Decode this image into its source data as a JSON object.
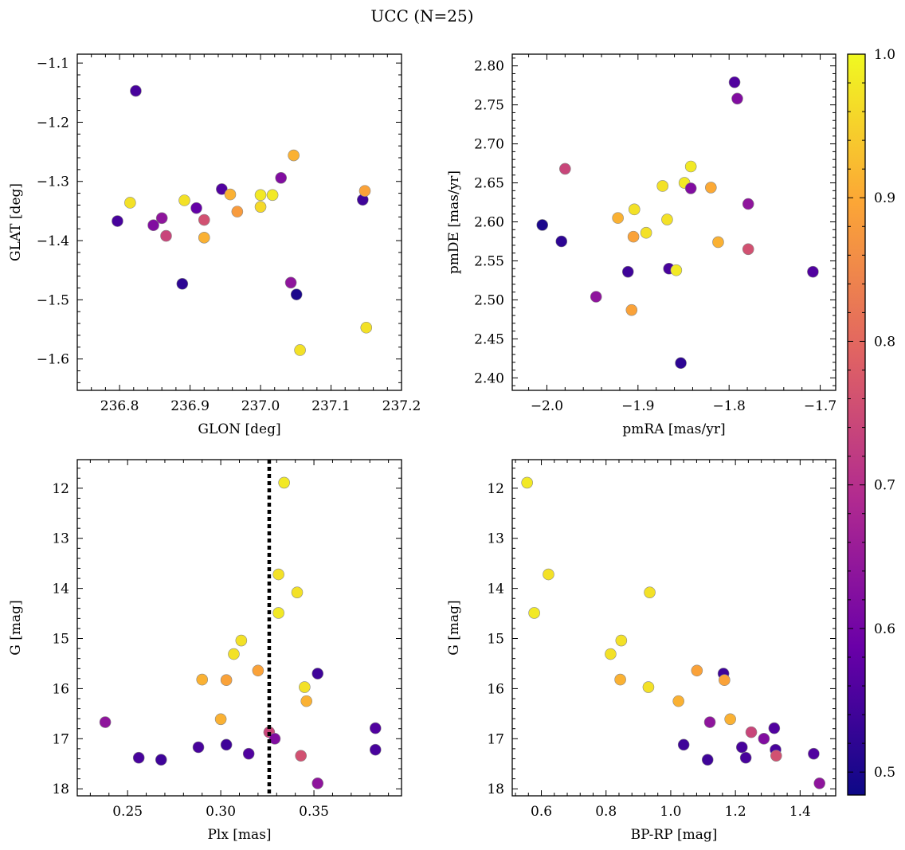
{
  "chart_data": {
    "title": "UCC (N=25)",
    "colorbar": {
      "range": [
        0.484,
        1.0
      ],
      "ticks": [
        0.5,
        0.6,
        0.7,
        0.8,
        0.9,
        1.0
      ],
      "tick_labels": [
        "0.5",
        "0.6",
        "0.7",
        "0.8",
        "0.9",
        "1.0"
      ],
      "colormap": [
        "#0d0887",
        "#6a00a8",
        "#b12a90",
        "#e16462",
        "#fca636",
        "#f0f921"
      ]
    },
    "panels": [
      {
        "type": "scatter",
        "name": "glon-glat",
        "xlabel": "GLON [deg]",
        "ylabel": "GLAT [deg]",
        "xlim": [
          236.74,
          237.2
        ],
        "ylim": [
          -1.653,
          -1.085
        ],
        "y_inverted": false,
        "xticks": [
          236.8,
          236.9,
          237.0,
          237.1,
          237.2
        ],
        "xtick_labels": [
          "236.8",
          "236.9",
          "237.0",
          "237.1",
          "237.2"
        ],
        "yticks": [
          -1.1,
          -1.2,
          -1.3,
          -1.4,
          -1.5,
          -1.6
        ],
        "ytick_labels": [
          "−1.1",
          "−1.2",
          "−1.3",
          "−1.4",
          "−1.5",
          "−1.6"
        ],
        "points": [
          {
            "x": 236.823,
            "y": -1.147,
            "c": 0.55
          },
          {
            "x": 236.797,
            "y": -1.367,
            "c": 0.55
          },
          {
            "x": 236.815,
            "y": -1.336,
            "c": 0.97
          },
          {
            "x": 236.848,
            "y": -1.374,
            "c": 0.62
          },
          {
            "x": 236.86,
            "y": -1.362,
            "c": 0.64
          },
          {
            "x": 236.866,
            "y": -1.392,
            "c": 0.74
          },
          {
            "x": 236.889,
            "y": -1.473,
            "c": 0.52
          },
          {
            "x": 236.892,
            "y": -1.332,
            "c": 0.97
          },
          {
            "x": 236.909,
            "y": -1.345,
            "c": 0.58
          },
          {
            "x": 236.92,
            "y": -1.365,
            "c": 0.76
          },
          {
            "x": 236.92,
            "y": -1.395,
            "c": 0.91
          },
          {
            "x": 236.945,
            "y": -1.313,
            "c": 0.56
          },
          {
            "x": 236.957,
            "y": -1.322,
            "c": 0.91
          },
          {
            "x": 236.967,
            "y": -1.351,
            "c": 0.88
          },
          {
            "x": 237.0,
            "y": -1.343,
            "c": 0.96
          },
          {
            "x": 237.0,
            "y": -1.323,
            "c": 0.98
          },
          {
            "x": 237.017,
            "y": -1.323,
            "c": 0.98
          },
          {
            "x": 237.029,
            "y": -1.294,
            "c": 0.62
          },
          {
            "x": 237.043,
            "y": -1.471,
            "c": 0.64
          },
          {
            "x": 237.047,
            "y": -1.256,
            "c": 0.91
          },
          {
            "x": 237.051,
            "y": -1.491,
            "c": 0.5
          },
          {
            "x": 237.056,
            "y": -1.585,
            "c": 0.97
          },
          {
            "x": 237.145,
            "y": -1.331,
            "c": 0.54
          },
          {
            "x": 237.148,
            "y": -1.316,
            "c": 0.89
          },
          {
            "x": 237.15,
            "y": -1.547,
            "c": 0.97
          }
        ]
      },
      {
        "type": "scatter",
        "name": "pmra-pmde",
        "xlabel": "pmRA [mas/yr]",
        "ylabel": "pmDE [mas/yr]",
        "xlim": [
          -2.038,
          -1.683
        ],
        "ylim": [
          2.384,
          2.815
        ],
        "y_inverted": false,
        "xticks": [
          -2.0,
          -1.9,
          -1.8,
          -1.7
        ],
        "xtick_labels": [
          "−2.0",
          "−1.9",
          "−1.8",
          "−1.7"
        ],
        "yticks": [
          2.4,
          2.45,
          2.5,
          2.55,
          2.6,
          2.65,
          2.7,
          2.75,
          2.8
        ],
        "ytick_labels": [
          "2.40",
          "2.45",
          "2.50",
          "2.55",
          "2.60",
          "2.65",
          "2.70",
          "2.75",
          "2.80"
        ],
        "points": [
          {
            "x": -2.005,
            "y": 2.596,
            "c": 0.5
          },
          {
            "x": -1.984,
            "y": 2.575,
            "c": 0.52
          },
          {
            "x": -1.98,
            "y": 2.668,
            "c": 0.74
          },
          {
            "x": -1.946,
            "y": 2.504,
            "c": 0.64
          },
          {
            "x": -1.922,
            "y": 2.605,
            "c": 0.91
          },
          {
            "x": -1.911,
            "y": 2.536,
            "c": 0.54
          },
          {
            "x": -1.907,
            "y": 2.487,
            "c": 0.89
          },
          {
            "x": -1.905,
            "y": 2.581,
            "c": 0.89
          },
          {
            "x": -1.904,
            "y": 2.616,
            "c": 0.97
          },
          {
            "x": -1.891,
            "y": 2.586,
            "c": 0.97
          },
          {
            "x": -1.873,
            "y": 2.646,
            "c": 0.97
          },
          {
            "x": -1.868,
            "y": 2.603,
            "c": 0.97
          },
          {
            "x": -1.866,
            "y": 2.54,
            "c": 0.55
          },
          {
            "x": -1.858,
            "y": 2.538,
            "c": 0.98
          },
          {
            "x": -1.853,
            "y": 2.419,
            "c": 0.52
          },
          {
            "x": -1.849,
            "y": 2.65,
            "c": 0.98
          },
          {
            "x": -1.842,
            "y": 2.671,
            "c": 0.98
          },
          {
            "x": -1.842,
            "y": 2.643,
            "c": 0.62
          },
          {
            "x": -1.82,
            "y": 2.644,
            "c": 0.9
          },
          {
            "x": -1.812,
            "y": 2.574,
            "c": 0.91
          },
          {
            "x": -1.794,
            "y": 2.779,
            "c": 0.56
          },
          {
            "x": -1.791,
            "y": 2.758,
            "c": 0.62
          },
          {
            "x": -1.779,
            "y": 2.623,
            "c": 0.64
          },
          {
            "x": -1.779,
            "y": 2.565,
            "c": 0.76
          },
          {
            "x": -1.708,
            "y": 2.536,
            "c": 0.56
          }
        ]
      },
      {
        "type": "scatter",
        "name": "plx-g",
        "xlabel": "Plx [mas]",
        "ylabel": "G [mag]",
        "xlim": [
          0.223,
          0.397
        ],
        "ylim": [
          18.14,
          11.43
        ],
        "y_inverted": true,
        "vline": 0.326,
        "xticks": [
          0.25,
          0.3,
          0.35
        ],
        "xtick_labels": [
          "0.25",
          "0.30",
          "0.35"
        ],
        "yticks": [
          12,
          13,
          14,
          15,
          16,
          17,
          18
        ],
        "ytick_labels": [
          "12",
          "13",
          "14",
          "15",
          "16",
          "17",
          "18"
        ],
        "points": [
          {
            "x": 0.334,
            "y": 11.89,
            "c": 0.98
          },
          {
            "x": 0.331,
            "y": 13.72,
            "c": 0.97
          },
          {
            "x": 0.341,
            "y": 14.08,
            "c": 0.97
          },
          {
            "x": 0.331,
            "y": 14.49,
            "c": 0.98
          },
          {
            "x": 0.311,
            "y": 15.04,
            "c": 0.97
          },
          {
            "x": 0.307,
            "y": 15.31,
            "c": 0.97
          },
          {
            "x": 0.32,
            "y": 15.64,
            "c": 0.89
          },
          {
            "x": 0.352,
            "y": 15.7,
            "c": 0.54
          },
          {
            "x": 0.29,
            "y": 15.82,
            "c": 0.91
          },
          {
            "x": 0.303,
            "y": 15.83,
            "c": 0.89
          },
          {
            "x": 0.345,
            "y": 15.97,
            "c": 0.97
          },
          {
            "x": 0.346,
            "y": 16.25,
            "c": 0.91
          },
          {
            "x": 0.3,
            "y": 16.61,
            "c": 0.91
          },
          {
            "x": 0.238,
            "y": 16.67,
            "c": 0.64
          },
          {
            "x": 0.383,
            "y": 16.79,
            "c": 0.56
          },
          {
            "x": 0.326,
            "y": 16.87,
            "c": 0.74
          },
          {
            "x": 0.329,
            "y": 17.0,
            "c": 0.62
          },
          {
            "x": 0.303,
            "y": 17.12,
            "c": 0.54
          },
          {
            "x": 0.288,
            "y": 17.17,
            "c": 0.55
          },
          {
            "x": 0.383,
            "y": 17.22,
            "c": 0.55
          },
          {
            "x": 0.315,
            "y": 17.3,
            "c": 0.56
          },
          {
            "x": 0.343,
            "y": 17.34,
            "c": 0.76
          },
          {
            "x": 0.256,
            "y": 17.38,
            "c": 0.55
          },
          {
            "x": 0.268,
            "y": 17.42,
            "c": 0.54
          },
          {
            "x": 0.352,
            "y": 17.89,
            "c": 0.64
          }
        ]
      },
      {
        "type": "scatter",
        "name": "bprp-g",
        "xlabel": "BP-RP [mag]",
        "ylabel": "G [mag]",
        "xlim": [
          0.51,
          1.51
        ],
        "ylim": [
          18.14,
          11.43
        ],
        "y_inverted": true,
        "xticks": [
          0.6,
          0.8,
          1.0,
          1.2,
          1.4
        ],
        "xtick_labels": [
          "0.6",
          "0.8",
          "1.0",
          "1.2",
          "1.4"
        ],
        "yticks": [
          12,
          13,
          14,
          15,
          16,
          17,
          18
        ],
        "ytick_labels": [
          "12",
          "13",
          "14",
          "15",
          "16",
          "17",
          "18"
        ],
        "points": [
          {
            "x": 0.556,
            "y": 11.89,
            "c": 0.98
          },
          {
            "x": 0.622,
            "y": 13.72,
            "c": 0.97
          },
          {
            "x": 0.935,
            "y": 14.08,
            "c": 0.97
          },
          {
            "x": 0.578,
            "y": 14.49,
            "c": 0.98
          },
          {
            "x": 0.847,
            "y": 15.04,
            "c": 0.97
          },
          {
            "x": 0.814,
            "y": 15.31,
            "c": 0.97
          },
          {
            "x": 1.081,
            "y": 15.64,
            "c": 0.89
          },
          {
            "x": 1.163,
            "y": 15.7,
            "c": 0.54
          },
          {
            "x": 0.844,
            "y": 15.82,
            "c": 0.91
          },
          {
            "x": 1.166,
            "y": 15.83,
            "c": 0.89
          },
          {
            "x": 0.931,
            "y": 15.97,
            "c": 0.97
          },
          {
            "x": 1.024,
            "y": 16.25,
            "c": 0.91
          },
          {
            "x": 1.184,
            "y": 16.61,
            "c": 0.91
          },
          {
            "x": 1.121,
            "y": 16.67,
            "c": 0.64
          },
          {
            "x": 1.32,
            "y": 16.79,
            "c": 0.56
          },
          {
            "x": 1.249,
            "y": 16.87,
            "c": 0.74
          },
          {
            "x": 1.288,
            "y": 17.0,
            "c": 0.62
          },
          {
            "x": 1.04,
            "y": 17.12,
            "c": 0.54
          },
          {
            "x": 1.22,
            "y": 17.17,
            "c": 0.55
          },
          {
            "x": 1.324,
            "y": 17.22,
            "c": 0.55
          },
          {
            "x": 1.442,
            "y": 17.3,
            "c": 0.56
          },
          {
            "x": 1.326,
            "y": 17.34,
            "c": 0.76
          },
          {
            "x": 1.232,
            "y": 17.38,
            "c": 0.55
          },
          {
            "x": 1.114,
            "y": 17.42,
            "c": 0.54
          },
          {
            "x": 1.46,
            "y": 17.89,
            "c": 0.64
          }
        ]
      }
    ]
  }
}
